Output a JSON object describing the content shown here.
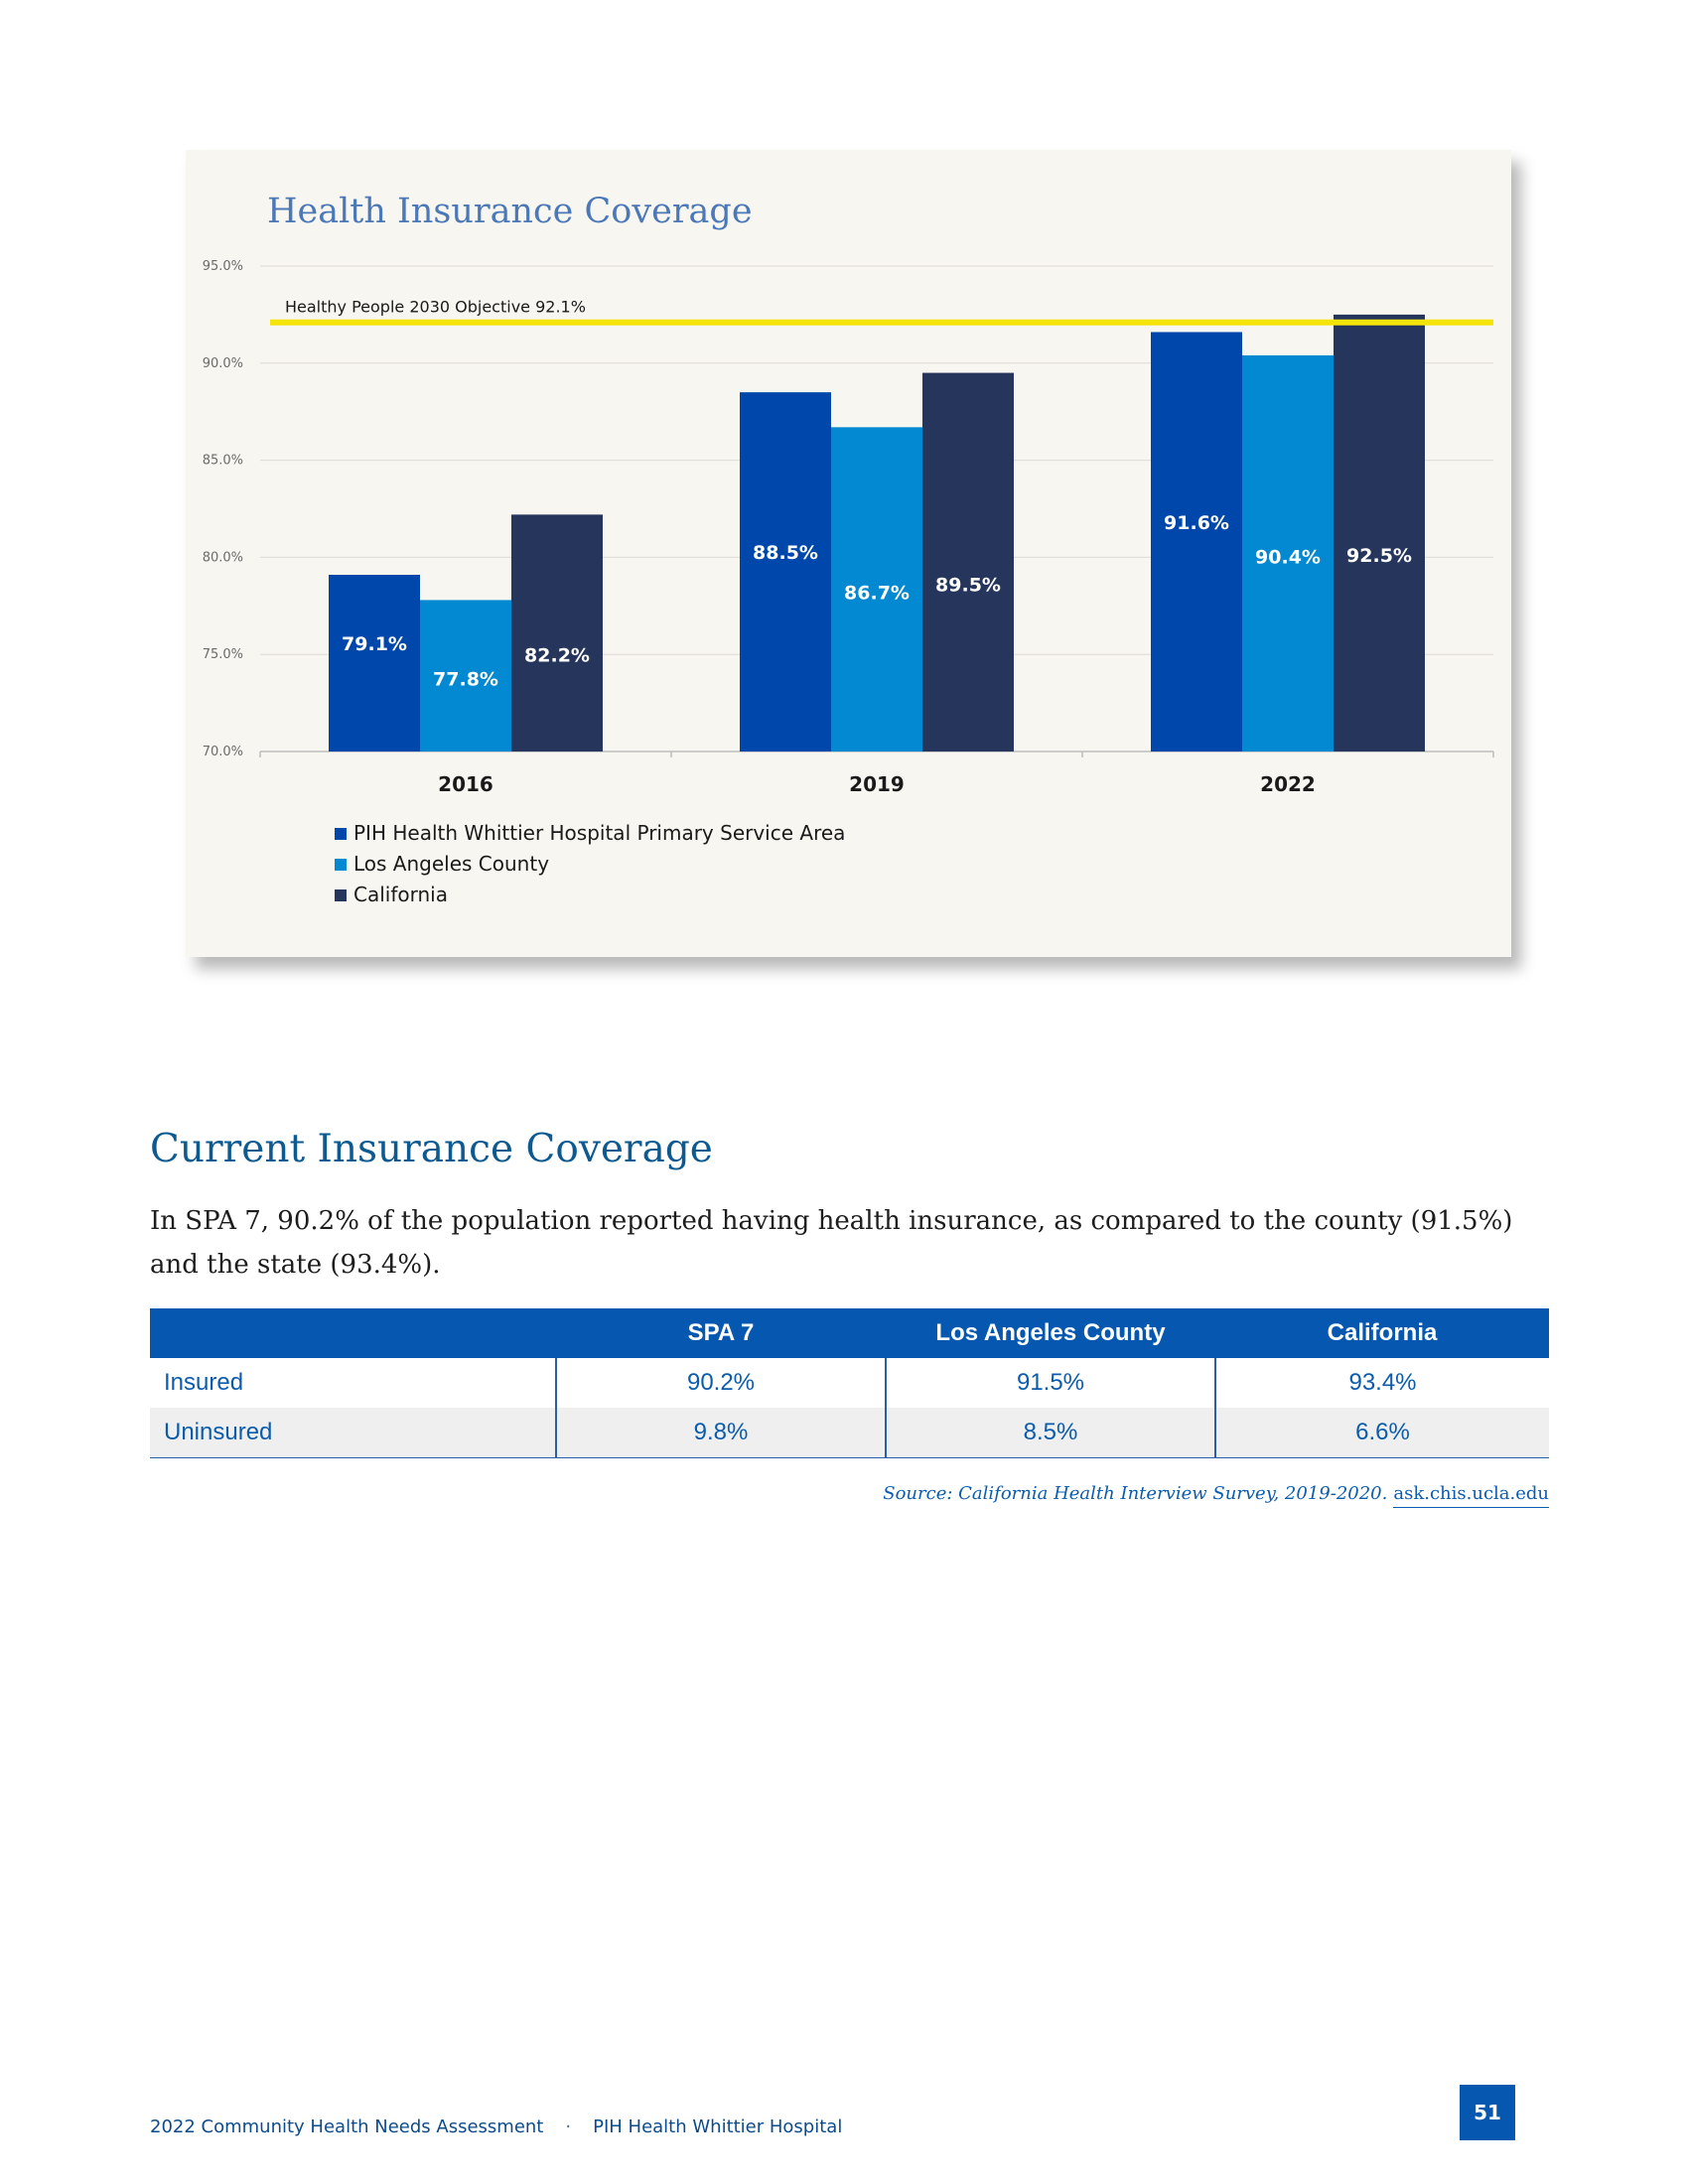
{
  "chart_data": {
    "type": "bar",
    "title": "Health Insurance Coverage",
    "categories": [
      "2016",
      "2019",
      "2022"
    ],
    "series": [
      {
        "name": "PIH Health Whittier Hospital Primary Service Area",
        "values": [
          79.1,
          88.5,
          91.6
        ],
        "labels": [
          "79.1%",
          "88.5%",
          "91.6%"
        ],
        "color": "#0047ab"
      },
      {
        "name": "Los Angeles County",
        "values": [
          77.8,
          86.7,
          90.4
        ],
        "labels": [
          "77.8%",
          "86.7%",
          "90.4%"
        ],
        "color": "#0389d1"
      },
      {
        "name": "California",
        "values": [
          82.2,
          89.5,
          92.5
        ],
        "labels": [
          "82.2%",
          "89.5%",
          "92.5%"
        ],
        "color": "#26355c"
      }
    ],
    "ylim": [
      70,
      95
    ],
    "yticks": [
      "70.0%",
      "75.0%",
      "80.0%",
      "85.0%",
      "90.0%",
      "95.0%"
    ],
    "reference_line": {
      "value": 92.1,
      "label": "Healthy People 2030 Objective 92.1%",
      "color": "#f5e40a"
    },
    "grid": true,
    "legend_position": "bottom-left"
  },
  "section": {
    "title": "Current Insurance Coverage",
    "intro": "In SPA 7, 90.2% of the population reported having health insurance, as compared to the county (91.5%) and the state (93.4%)."
  },
  "table": {
    "headers": [
      "",
      "SPA 7",
      "Los Angeles County",
      "California"
    ],
    "rows": [
      [
        "Insured",
        "90.2%",
        "91.5%",
        "93.4%"
      ],
      [
        "Uninsured",
        "9.8%",
        "8.5%",
        "6.6%"
      ]
    ]
  },
  "source": {
    "text": "Source: California Health Interview Survey, 2019-2020.",
    "link": "ask.chis.ucla.edu"
  },
  "footer": {
    "report": "2022 Community Health Needs Assessment",
    "separator": "·",
    "hospital": "PIH Health Whittier Hospital",
    "page": "51"
  }
}
